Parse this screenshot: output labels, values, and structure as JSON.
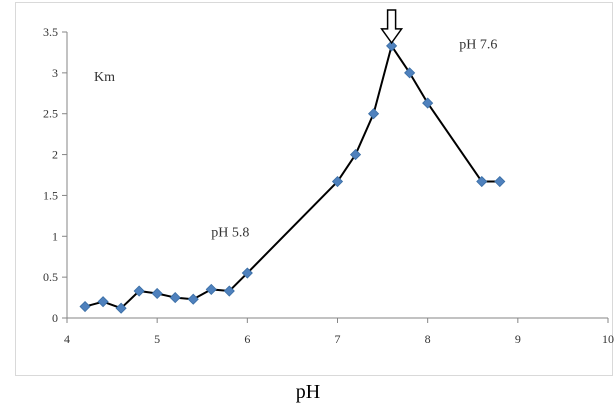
{
  "chart_data": {
    "type": "line",
    "xlabel": "pH",
    "ylabel": "",
    "xlim": [
      4,
      10
    ],
    "ylim": [
      0,
      3.5
    ],
    "xticks": [
      "4",
      "5",
      "6",
      "7",
      "8",
      "9",
      "10"
    ],
    "yticks": [
      "0",
      "0.5",
      "1",
      "1.5",
      "2",
      "2.5",
      "3",
      "3.5"
    ],
    "grid": false,
    "legend": "none",
    "series": [
      {
        "name": "Km",
        "color": "#000000",
        "marker_color": "#4f81bd",
        "x": [
          4.2,
          4.4,
          4.6,
          4.8,
          5.0,
          5.2,
          5.4,
          5.6,
          5.8,
          6.0,
          7.0,
          7.2,
          7.4,
          7.6,
          7.8,
          8.0,
          8.6,
          8.8
        ],
        "y": [
          0.14,
          0.2,
          0.12,
          0.33,
          0.3,
          0.25,
          0.23,
          0.35,
          0.33,
          0.55,
          1.67,
          2.0,
          2.5,
          3.33,
          3.0,
          2.63,
          1.67,
          1.67
        ]
      }
    ],
    "annotations": [
      {
        "text": "Km",
        "x": 4.3,
        "y": 2.9
      },
      {
        "text": "pH 5.8",
        "x": 5.6,
        "y": 1.0
      },
      {
        "text": "pH 7.6",
        "x": 8.35,
        "y": 3.3
      }
    ],
    "arrow": {
      "x": 7.6,
      "y": 3.33
    }
  }
}
